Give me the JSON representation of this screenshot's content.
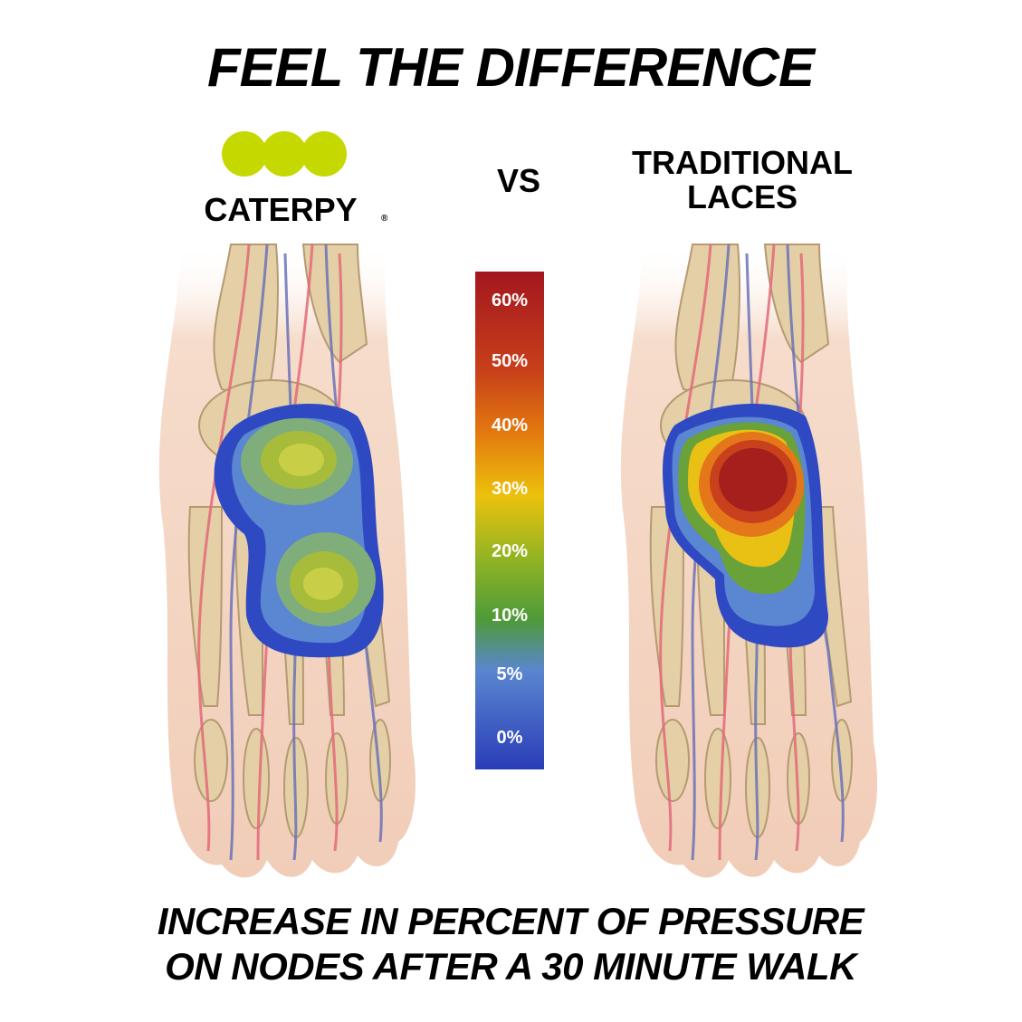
{
  "header": {
    "title": "FEEL THE DIFFERENCE"
  },
  "left": {
    "brand": "CATERPY",
    "mark": "®"
  },
  "versus": "VS",
  "right": {
    "lines": [
      "TRADITIONAL",
      "LACES"
    ]
  },
  "scale": {
    "labels": [
      "60%",
      "50%",
      "40%",
      "30%",
      "20%",
      "10%",
      "5%",
      "0%"
    ]
  },
  "caption": {
    "lines": [
      "INCREASE IN PERCENT OF PRESSURE",
      "ON NODES AFTER A 30 MINUTE WALK"
    ]
  }
}
